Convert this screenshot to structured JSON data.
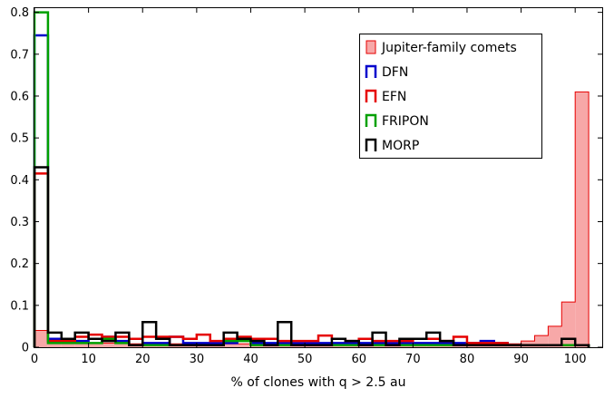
{
  "chart_data": {
    "type": "histogram",
    "xlabel": "% of clones with q > 2.5 au",
    "ylabel": "",
    "xlim": [
      0,
      105
    ],
    "ylim": [
      0,
      0.81
    ],
    "xticks": [
      0,
      10,
      20,
      30,
      40,
      50,
      60,
      70,
      80,
      90,
      100
    ],
    "yticks": [
      0,
      0.1,
      0.2,
      0.3,
      0.4,
      0.5,
      0.6,
      0.7,
      0.8
    ],
    "xtick_labels": [
      "0",
      "10",
      "20",
      "30",
      "40",
      "50",
      "60",
      "70",
      "80",
      "90",
      "100"
    ],
    "ytick_labels": [
      "0",
      "0.1",
      "0.2",
      "0.3",
      "0.4",
      "0.5",
      "0.6",
      "0.7",
      "0.8"
    ],
    "grid": false,
    "legend_position": "top-right",
    "bin_width": 2.5,
    "bin_starts": [
      0,
      2.5,
      5,
      7.5,
      10,
      12.5,
      15,
      17.5,
      20,
      22.5,
      25,
      27.5,
      30,
      32.5,
      35,
      37.5,
      40,
      42.5,
      45,
      47.5,
      50,
      52.5,
      55,
      57.5,
      60,
      62.5,
      65,
      67.5,
      70,
      72.5,
      75,
      77.5,
      80,
      82.5,
      85,
      87.5,
      90,
      92.5,
      95,
      97.5,
      100
    ],
    "series": [
      {
        "name": "Jupiter-family comets",
        "style": "filled",
        "color": "#e60000",
        "fill": "#f7a8a8",
        "values": [
          0.04,
          0.02,
          0.015,
          0.01,
          0.01,
          0.01,
          0.01,
          0.008,
          0.01,
          0.008,
          0.008,
          0.008,
          0.008,
          0.008,
          0.008,
          0.008,
          0.008,
          0.008,
          0.008,
          0.008,
          0.008,
          0.008,
          0.008,
          0.008,
          0.008,
          0.008,
          0.008,
          0.008,
          0.008,
          0.008,
          0.008,
          0.008,
          0.008,
          0.008,
          0.008,
          0.008,
          0.015,
          0.028,
          0.05,
          0.108,
          0.61
        ]
      },
      {
        "name": "DFN",
        "style": "step",
        "color": "#0000cc",
        "values": [
          0.745,
          0.02,
          0.02,
          0.015,
          0.02,
          0.025,
          0.015,
          0.02,
          0.01,
          0.01,
          0.025,
          0.01,
          0.01,
          0.01,
          0.01,
          0.02,
          0.01,
          0.01,
          0.01,
          0.01,
          0.01,
          0.01,
          0.01,
          0.01,
          0.01,
          0.01,
          0.01,
          0.01,
          0.01,
          0.01,
          0.01,
          0.01,
          0.01,
          0.015,
          0.01,
          0.005,
          0.005,
          0.005,
          0.005,
          0.005,
          0.005
        ]
      },
      {
        "name": "EFN",
        "style": "step",
        "color": "#e60000",
        "values": [
          0.415,
          0.015,
          0.015,
          0.025,
          0.03,
          0.025,
          0.025,
          0.02,
          0.025,
          0.025,
          0.025,
          0.02,
          0.03,
          0.015,
          0.02,
          0.025,
          0.02,
          0.02,
          0.015,
          0.015,
          0.015,
          0.028,
          0.02,
          0.015,
          0.02,
          0.015,
          0.015,
          0.015,
          0.02,
          0.02,
          0.015,
          0.025,
          0.01,
          0.01,
          0.01,
          0.005,
          0.005,
          0.005,
          0.005,
          0.005,
          0.005
        ]
      },
      {
        "name": "FRIPON",
        "style": "step",
        "color": "#00a000",
        "values": [
          0.8,
          0.01,
          0.01,
          0.01,
          0.01,
          0.02,
          0.01,
          0.005,
          0.005,
          0.005,
          0.005,
          0.005,
          0.005,
          0.005,
          0.015,
          0.015,
          0.005,
          0.005,
          0.005,
          0.005,
          0.005,
          0.005,
          0.005,
          0.005,
          0.005,
          0.005,
          0.005,
          0.005,
          0.005,
          0.005,
          0.005,
          0.005,
          0.005,
          0.005,
          0.005,
          0.005,
          0.005,
          0.005,
          0.005,
          0.005,
          0.005
        ]
      },
      {
        "name": "MORP",
        "style": "step",
        "color": "#000000",
        "values": [
          0.43,
          0.035,
          0.02,
          0.035,
          0.02,
          0.015,
          0.035,
          0.005,
          0.06,
          0.02,
          0.005,
          0.005,
          0.005,
          0.005,
          0.035,
          0.02,
          0.015,
          0.005,
          0.06,
          0.005,
          0.005,
          0.005,
          0.02,
          0.015,
          0.005,
          0.035,
          0.005,
          0.02,
          0.02,
          0.035,
          0.015,
          0.005,
          0.005,
          0.005,
          0.005,
          0.005,
          0.005,
          0.005,
          0.005,
          0.02,
          0.005
        ]
      }
    ]
  }
}
